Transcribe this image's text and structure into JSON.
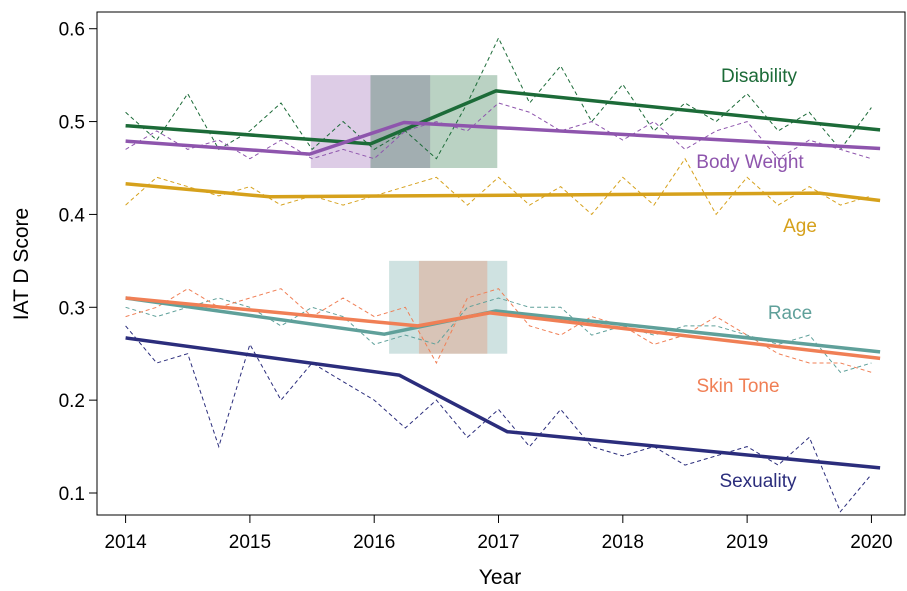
{
  "chart_data": {
    "type": "line",
    "xlabel": "Year",
    "ylabel": "IAT D Score",
    "xlim": [
      2013.77,
      2020.27
    ],
    "ylim": [
      0.0763,
      0.618
    ],
    "xticks": [
      2014,
      2015,
      2016,
      2017,
      2018,
      2019,
      2020
    ],
    "yticks": [
      0.1,
      0.2,
      0.3,
      0.4,
      0.5,
      0.6
    ],
    "x": [
      2014,
      2014.25,
      2014.5,
      2014.75,
      2015,
      2015.25,
      2015.5,
      2015.75,
      2016,
      2016.25,
      2016.5,
      2016.75,
      2017,
      2017.25,
      2017.5,
      2017.75,
      2018,
      2018.25,
      2018.5,
      2018.75,
      2019,
      2019.25,
      2019.5,
      2019.75,
      2020
    ],
    "series": [
      {
        "name": "Disability",
        "color": "#1c6b38",
        "values": [
          0.51,
          0.48,
          0.53,
          0.47,
          0.49,
          0.52,
          0.47,
          0.5,
          0.47,
          0.49,
          0.46,
          0.52,
          0.59,
          0.52,
          0.56,
          0.5,
          0.54,
          0.49,
          0.52,
          0.5,
          0.53,
          0.49,
          0.51,
          0.47,
          0.515
        ],
        "trend_x": [
          2014,
          2015.97,
          2016.98,
          2020.07
        ],
        "trend_values": [
          0.4955,
          0.476,
          0.533,
          0.491
        ]
      },
      {
        "name": "Body Weight",
        "color": "#8e55ad",
        "values": [
          0.47,
          0.49,
          0.47,
          0.48,
          0.46,
          0.48,
          0.46,
          0.47,
          0.46,
          0.49,
          0.5,
          0.49,
          0.52,
          0.51,
          0.49,
          0.5,
          0.48,
          0.5,
          0.47,
          0.49,
          0.5,
          0.46,
          0.48,
          0.47,
          0.46
        ],
        "trend_x": [
          2014,
          2015.48,
          2016.24,
          2020.07
        ],
        "trend_values": [
          0.479,
          0.465,
          0.499,
          0.471
        ]
      },
      {
        "name": "Age",
        "color": "#d6a11c",
        "values": [
          0.41,
          0.44,
          0.43,
          0.42,
          0.43,
          0.41,
          0.42,
          0.41,
          0.42,
          0.43,
          0.44,
          0.41,
          0.44,
          0.41,
          0.43,
          0.4,
          0.44,
          0.41,
          0.46,
          0.4,
          0.44,
          0.41,
          0.43,
          0.41,
          0.42
        ],
        "trend_x": [
          2014,
          2015.16,
          2019.58,
          2020.07
        ],
        "trend_values": [
          0.433,
          0.419,
          0.423,
          0.415
        ]
      },
      {
        "name": "Race",
        "color": "#5fa09a",
        "values": [
          0.3,
          0.29,
          0.3,
          0.31,
          0.3,
          0.28,
          0.3,
          0.29,
          0.26,
          0.27,
          0.26,
          0.3,
          0.31,
          0.3,
          0.3,
          0.27,
          0.28,
          0.27,
          0.28,
          0.28,
          0.27,
          0.26,
          0.27,
          0.23,
          0.24
        ],
        "trend_x": [
          2014,
          2016.08,
          2016.98,
          2020.07
        ],
        "trend_values": [
          0.31,
          0.271,
          0.296,
          0.252
        ]
      },
      {
        "name": "Skin Tone",
        "color": "#f07f55",
        "values": [
          0.29,
          0.3,
          0.32,
          0.3,
          0.31,
          0.32,
          0.29,
          0.31,
          0.29,
          0.3,
          0.24,
          0.31,
          0.32,
          0.28,
          0.27,
          0.29,
          0.28,
          0.26,
          0.27,
          0.29,
          0.27,
          0.25,
          0.24,
          0.24,
          0.23
        ],
        "trend_x": [
          2014,
          2016.35,
          2016.93,
          2020.07
        ],
        "trend_values": [
          0.31,
          0.28,
          0.294,
          0.245
        ]
      },
      {
        "name": "Sexuality",
        "color": "#2b2d7c",
        "values": [
          0.28,
          0.24,
          0.25,
          0.15,
          0.26,
          0.2,
          0.24,
          0.22,
          0.2,
          0.17,
          0.2,
          0.16,
          0.19,
          0.15,
          0.19,
          0.15,
          0.14,
          0.15,
          0.13,
          0.14,
          0.15,
          0.13,
          0.16,
          0.08,
          0.12
        ],
        "trend_x": [
          2014,
          2016.2,
          2017.07,
          2020.07
        ],
        "trend_values": [
          0.267,
          0.227,
          0.166,
          0.127
        ]
      }
    ],
    "bands": [
      {
        "x": [
          2015.49,
          2016.45
        ],
        "y": [
          0.45,
          0.55
        ],
        "color": "#8e55ad"
      },
      {
        "x": [
          2015.97,
          2016.99
        ],
        "y": [
          0.45,
          0.55
        ],
        "color": "#1c6b38"
      },
      {
        "x": [
          2016.12,
          2017.07
        ],
        "y": [
          0.25,
          0.35
        ],
        "color": "#5fa09a"
      },
      {
        "x": [
          2016.36,
          2016.91
        ],
        "y": [
          0.25,
          0.35
        ],
        "color": "#f07f55"
      }
    ]
  }
}
